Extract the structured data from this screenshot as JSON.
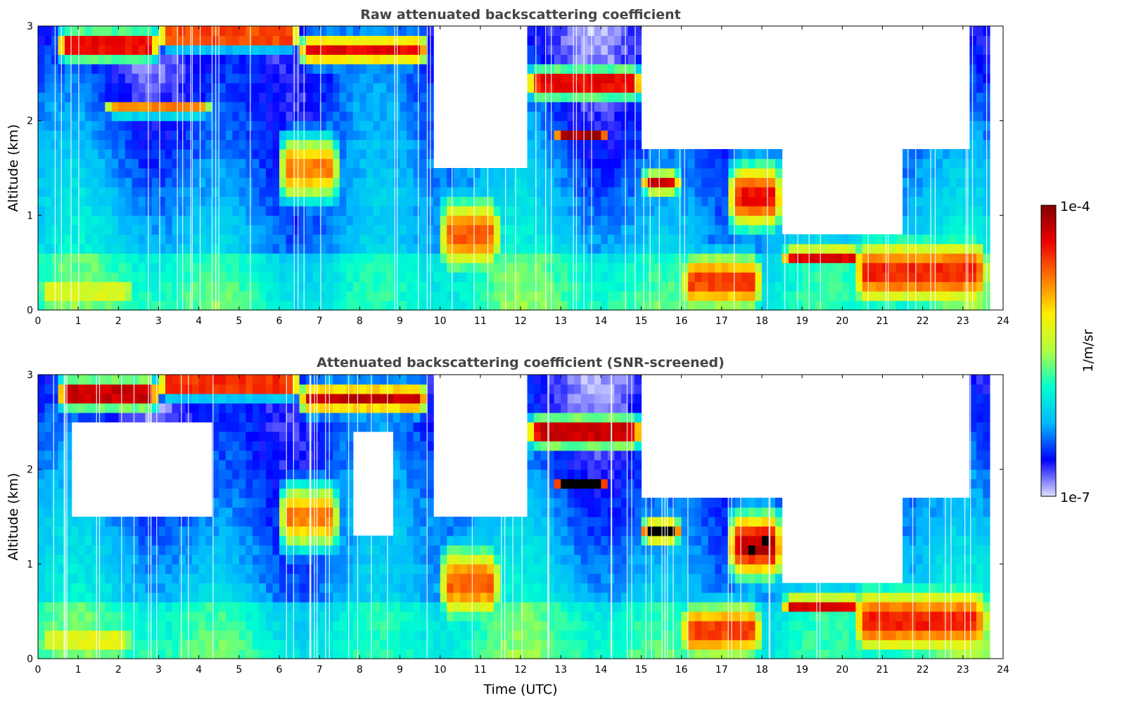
{
  "chart_data": [
    {
      "type": "heatmap",
      "title": "Raw attenuated backscattering coefficient",
      "xlabel": "",
      "ylabel": "Altitude (km)",
      "xlim": [
        0,
        24
      ],
      "ylim": [
        0,
        3
      ],
      "xticks": [
        0,
        1,
        2,
        3,
        4,
        5,
        6,
        7,
        8,
        9,
        10,
        11,
        12,
        13,
        14,
        15,
        16,
        17,
        18,
        19,
        20,
        21,
        22,
        23,
        24
      ],
      "yticks": [
        0,
        1,
        2,
        3
      ],
      "features": [
        {
          "t0": 0.5,
          "t1": 3.0,
          "h": 2.8,
          "hw": 0.15,
          "v": 0.95
        },
        {
          "t0": 0.0,
          "t1": 2.4,
          "h": 0.2,
          "hw": 0.06,
          "v": 0.98
        },
        {
          "t0": 1.7,
          "t1": 4.3,
          "h": 2.12,
          "hw": 0.06,
          "v": 0.9
        },
        {
          "t0": 3.0,
          "t1": 6.5,
          "h": 2.9,
          "hw": 0.12,
          "v": 0.92
        },
        {
          "t0": 6.5,
          "t1": 9.7,
          "h": 2.75,
          "hw": 0.15,
          "v": 0.88
        },
        {
          "t0": 6.0,
          "t1": 7.5,
          "h": 1.5,
          "hw": 0.35,
          "v": 0.75
        },
        {
          "t0": 10.0,
          "t1": 11.5,
          "h": 0.8,
          "hw": 0.4,
          "v": 0.78
        },
        {
          "t0": 12.2,
          "t1": 15.0,
          "h": 2.4,
          "hw": 0.15,
          "v": 0.95
        },
        {
          "t0": 12.8,
          "t1": 14.2,
          "h": 1.85,
          "hw": 0.05,
          "v": 0.95
        },
        {
          "t0": 15.0,
          "t1": 16.0,
          "h": 1.35,
          "hw": 0.12,
          "v": 0.9
        },
        {
          "t0": 16.0,
          "t1": 18.0,
          "h": 0.3,
          "hw": 0.3,
          "v": 0.82
        },
        {
          "t0": 17.2,
          "t1": 18.5,
          "h": 1.2,
          "hw": 0.35,
          "v": 0.88
        },
        {
          "t0": 18.5,
          "t1": 20.5,
          "h": 0.58,
          "hw": 0.08,
          "v": 1.0
        },
        {
          "t0": 20.3,
          "t1": 23.6,
          "h": 0.4,
          "hw": 0.35,
          "v": 0.85
        }
      ],
      "clear_regions": [
        {
          "t0": 9.8,
          "t1": 12.2,
          "hmin": 1.5
        },
        {
          "t0": 15.0,
          "t1": 23.2,
          "hmin": 1.7
        },
        {
          "t0": 18.5,
          "t1": 21.5,
          "hmin": 0.8
        }
      ],
      "data_end_time": 23.6
    },
    {
      "type": "heatmap",
      "title": "Attenuated backscattering coefficient (SNR-screened)",
      "xlabel": "Time (UTC)",
      "ylabel": "Altitude (km)",
      "xlim": [
        0,
        24
      ],
      "ylim": [
        0,
        3
      ],
      "xticks": [
        0,
        1,
        2,
        3,
        4,
        5,
        6,
        7,
        8,
        9,
        10,
        11,
        12,
        13,
        14,
        15,
        16,
        17,
        18,
        19,
        20,
        21,
        22,
        23,
        24
      ],
      "yticks": [
        0,
        1,
        2,
        3
      ],
      "features": [
        {
          "t0": 0.5,
          "t1": 3.0,
          "h": 2.8,
          "hw": 0.15,
          "v": 1.0
        },
        {
          "t0": 0.0,
          "t1": 2.4,
          "h": 0.2,
          "hw": 0.06,
          "v": 1.0
        },
        {
          "t0": 1.7,
          "t1": 4.3,
          "h": 2.12,
          "hw": 0.06,
          "v": 1.0
        },
        {
          "t0": 3.0,
          "t1": 6.5,
          "h": 2.9,
          "hw": 0.12,
          "v": 0.95
        },
        {
          "t0": 6.5,
          "t1": 9.7,
          "h": 2.75,
          "hw": 0.15,
          "v": 0.92
        },
        {
          "t0": 6.0,
          "t1": 7.5,
          "h": 1.5,
          "hw": 0.35,
          "v": 0.75
        },
        {
          "t0": 10.0,
          "t1": 11.5,
          "h": 0.8,
          "hw": 0.4,
          "v": 0.78
        },
        {
          "t0": 12.2,
          "t1": 15.0,
          "h": 2.4,
          "hw": 0.15,
          "v": 1.0
        },
        {
          "t0": 12.8,
          "t1": 14.2,
          "h": 1.85,
          "hw": 0.05,
          "v": 1.0
        },
        {
          "t0": 15.0,
          "t1": 16.0,
          "h": 1.35,
          "hw": 0.12,
          "v": 1.0
        },
        {
          "t0": 16.0,
          "t1": 18.0,
          "h": 0.3,
          "hw": 0.3,
          "v": 0.82
        },
        {
          "t0": 17.2,
          "t1": 18.5,
          "h": 1.2,
          "hw": 0.35,
          "v": 0.95
        },
        {
          "t0": 18.5,
          "t1": 20.5,
          "h": 0.58,
          "hw": 0.08,
          "v": 1.0
        },
        {
          "t0": 20.3,
          "t1": 23.6,
          "h": 0.4,
          "hw": 0.35,
          "v": 0.85
        }
      ],
      "clear_regions": [
        {
          "t0": 9.8,
          "t1": 12.2,
          "hmin": 1.5
        },
        {
          "t0": 15.0,
          "t1": 23.2,
          "hmin": 1.7
        },
        {
          "t0": 18.5,
          "t1": 21.5,
          "hmin": 0.8
        },
        {
          "t0": 0.9,
          "t1": 4.4,
          "hmin": 1.5,
          "hmax": 2.5
        },
        {
          "t0": 7.9,
          "t1": 8.9,
          "hmin": 1.3,
          "hmax": 2.4
        }
      ],
      "data_end_time": 23.6
    }
  ],
  "colorbar": {
    "label": "1/m/sr",
    "max_label": "1e-4",
    "min_label": "1e-7",
    "colors": [
      "#e0e0ff",
      "#0000ff",
      "#00b8ff",
      "#00ffd0",
      "#b0ff40",
      "#ffee00",
      "#ff7800",
      "#ee0000",
      "#800000"
    ],
    "screened_color": "#000000"
  }
}
